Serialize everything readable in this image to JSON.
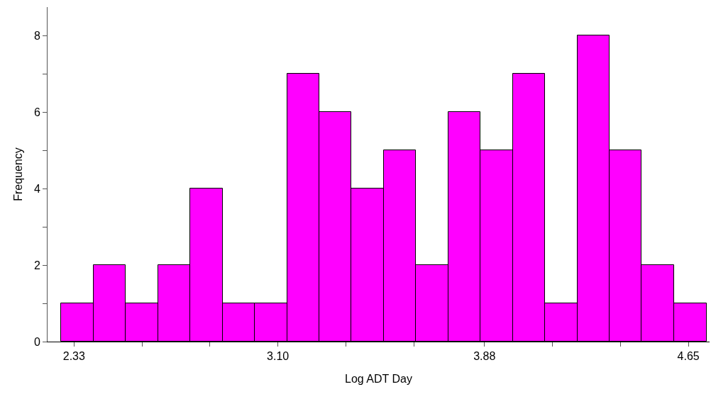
{
  "chart_data": {
    "type": "histogram",
    "xlabel": "Log ADT Day",
    "ylabel": "Frequency",
    "bins": [
      2.282,
      2.404,
      2.526,
      2.647,
      2.769,
      2.891,
      3.013,
      3.135,
      3.256,
      3.378,
      3.5,
      3.622,
      3.744,
      3.865,
      3.987,
      4.109,
      4.231,
      4.353,
      4.474,
      4.596,
      4.718
    ],
    "values": [
      1,
      2,
      1,
      2,
      4,
      1,
      1,
      7,
      6,
      4,
      5,
      2,
      6,
      5,
      7,
      1,
      8,
      5,
      2,
      1
    ],
    "color": "#ff00ff",
    "xlim": [
      2.23,
      4.73
    ],
    "xticks": [
      2.33,
      {
        "value": 2.587,
        "label": null
      },
      {
        "value": 2.843,
        "label": null
      },
      {
        "value": 3.1,
        "label": "3.10"
      },
      {
        "value": 3.357,
        "label": null
      },
      {
        "value": 3.613,
        "label": null
      },
      3.88,
      {
        "value": 4.137,
        "label": null
      },
      {
        "value": 4.393,
        "label": null
      },
      4.65
    ],
    "ylim": [
      0,
      8.75
    ],
    "grid": false,
    "yticks": [
      0,
      {
        "value": 1,
        "label": null
      },
      2,
      {
        "value": 3,
        "label": null
      },
      4,
      {
        "value": 5,
        "label": null
      },
      6,
      {
        "value": 7,
        "label": null
      },
      8
    ]
  }
}
